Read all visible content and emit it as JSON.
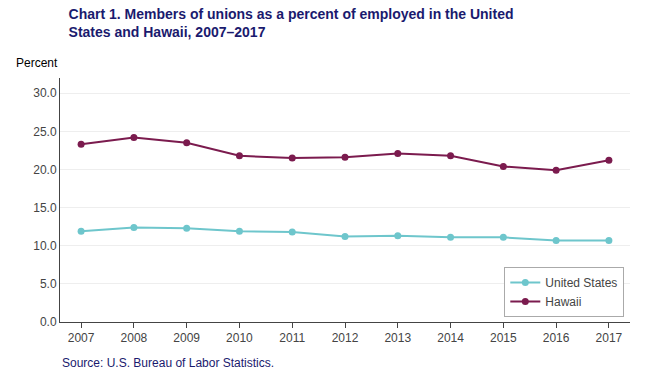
{
  "chart_data": {
    "type": "line",
    "title": "Chart 1. Members of unions as a percent of employed in the United  States and Hawaii, 2007–2017",
    "ylabel": "Percent",
    "annotations": [
      "Source: U.S. Bureau of Labor Statistics."
    ],
    "x": [
      2007,
      2008,
      2009,
      2010,
      2011,
      2012,
      2013,
      2014,
      2015,
      2016,
      2017
    ],
    "series": [
      {
        "name": "United States",
        "color": "#6EC6CC",
        "marker": "circle",
        "line_style": "solid",
        "values": [
          11.9,
          12.4,
          12.3,
          11.9,
          11.8,
          11.2,
          11.3,
          11.1,
          11.1,
          10.7,
          10.7
        ]
      },
      {
        "name": "Hawaii",
        "color": "#7B1B4E",
        "marker": "circle",
        "line_style": "solid",
        "values": [
          23.3,
          24.2,
          23.5,
          21.8,
          21.5,
          21.6,
          22.1,
          21.8,
          20.4,
          19.9,
          21.2
        ]
      }
    ],
    "xlim": [
      2006.6,
      2017.4
    ],
    "xticks": [
      2007,
      2008,
      2009,
      2010,
      2011,
      2012,
      2013,
      2014,
      2015,
      2016,
      2017
    ],
    "ylim": [
      0,
      32.0
    ],
    "yticks": [
      {
        "value": 0.0,
        "label": "0.0"
      },
      {
        "value": 5.0,
        "label": "5.0"
      },
      {
        "value": 10.0,
        "label": "10.0"
      },
      {
        "value": 15.0,
        "label": "15.0"
      },
      {
        "value": 20.0,
        "label": "20.0"
      },
      {
        "value": 25.0,
        "label": "25.0"
      },
      {
        "value": 30.0,
        "label": "30.0"
      }
    ],
    "grid": true,
    "legend": "lower right"
  }
}
